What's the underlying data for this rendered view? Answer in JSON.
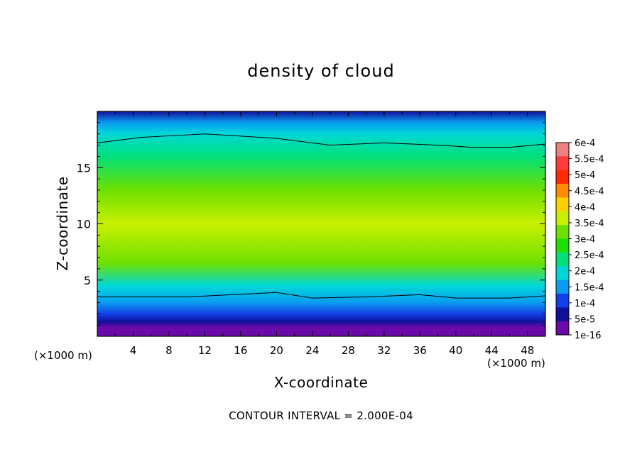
{
  "chart_data": {
    "type": "heatmap",
    "title": "density of cloud",
    "xlabel": "X-coordinate",
    "ylabel": "Z-coordinate",
    "x_unit": "(×1000 m)",
    "y_unit": "(×1000 m)",
    "xlim": [
      0,
      50
    ],
    "ylim": [
      0,
      20
    ],
    "x_ticks": [
      "4",
      "8",
      "12",
      "16",
      "20",
      "24",
      "28",
      "32",
      "36",
      "40",
      "44",
      "48"
    ],
    "y_ticks": [
      "5",
      "10",
      "15"
    ],
    "x_tick_values": [
      4,
      8,
      12,
      16,
      20,
      24,
      28,
      32,
      36,
      40,
      44,
      48
    ],
    "y_tick_values": [
      5,
      10,
      15
    ],
    "colorbar": {
      "labels": [
        "6e-4",
        "5.5e-4",
        "5e-4",
        "4.5e-4",
        "4e-4",
        "3.5e-4",
        "3e-4",
        "2.5e-4",
        "2e-4",
        "1.5e-4",
        "1e-4",
        "5e-5",
        "1e-16"
      ],
      "colors": [
        "#f08080",
        "#ff3b3b",
        "#ff2a00",
        "#ff8c00",
        "#ffd000",
        "#c8f000",
        "#6ee000",
        "#1ee000",
        "#00e07a",
        "#00d8d8",
        "#0a9cf0",
        "#1240e8",
        "#10109a",
        "#6a0aa8"
      ]
    },
    "field_profile": [
      {
        "z": 0.8,
        "value": 1e-16
      },
      {
        "z": 1.3,
        "value": 5e-05
      },
      {
        "z": 2.0,
        "value": 0.0001
      },
      {
        "z": 3.0,
        "value": 0.00015
      },
      {
        "z": 4.5,
        "value": 0.0002
      },
      {
        "z": 6.5,
        "value": 0.0003
      },
      {
        "z": 10,
        "value": 0.00035
      },
      {
        "z": 13,
        "value": 0.00032
      },
      {
        "z": 16,
        "value": 0.00025
      },
      {
        "z": 18,
        "value": 0.00018
      },
      {
        "z": 19,
        "value": 0.00012
      },
      {
        "z": 20,
        "value": 5e-05
      }
    ],
    "contour_2e4": {
      "lower": [
        [
          0,
          3.5
        ],
        [
          10,
          3.5
        ],
        [
          20,
          3.9
        ],
        [
          24,
          3.4
        ],
        [
          30,
          3.5
        ],
        [
          36,
          3.7
        ],
        [
          40,
          3.4
        ],
        [
          46,
          3.4
        ],
        [
          50,
          3.6
        ]
      ],
      "upper": [
        [
          0,
          17.2
        ],
        [
          5,
          17.7
        ],
        [
          12,
          18.0
        ],
        [
          20,
          17.6
        ],
        [
          26,
          17.0
        ],
        [
          32,
          17.2
        ],
        [
          38,
          17.0
        ],
        [
          42,
          16.8
        ],
        [
          46,
          16.8
        ],
        [
          50,
          17.1
        ]
      ]
    },
    "contour_interval": "CONTOUR INTERVAL = 2.000E-04"
  }
}
